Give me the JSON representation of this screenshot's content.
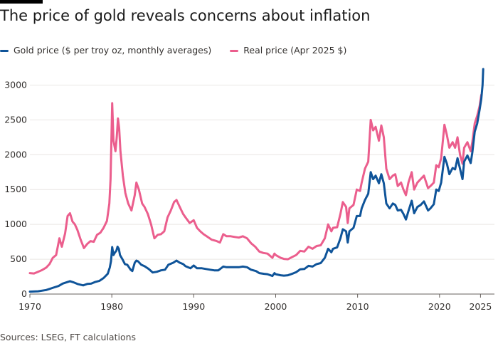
{
  "title": "The price of gold reveals concerns about inflation",
  "source": "Sources: LSEG, FT calculations",
  "colors": {
    "nominal": "#0f5499",
    "real": "#eb5e8d",
    "grid": "#e9e6e4",
    "axis": "#33302e"
  },
  "chart_data": {
    "type": "line",
    "title": "The price of gold reveals concerns about inflation",
    "xlabel": "",
    "ylabel": "",
    "xlim": [
      1970,
      2025.4
    ],
    "ylim": [
      0,
      3250
    ],
    "yticks": [
      0,
      500,
      1000,
      1500,
      2000,
      2500,
      3000
    ],
    "xticks": [
      1970,
      1980,
      1990,
      2000,
      2010,
      2020,
      2025
    ],
    "grid": true,
    "legend_position": "top-left",
    "series": [
      {
        "name": "Gold price ($ per troy oz, monthly averages)",
        "color": "#0f5499",
        "points": [
          [
            1970,
            35
          ],
          [
            1971,
            40
          ],
          [
            1972,
            58
          ],
          [
            1973,
            97
          ],
          [
            1973.5,
            115
          ],
          [
            1974,
            150
          ],
          [
            1974.5,
            170
          ],
          [
            1974.9,
            185
          ],
          [
            1975.3,
            170
          ],
          [
            1975.8,
            145
          ],
          [
            1976.5,
            125
          ],
          [
            1977,
            145
          ],
          [
            1977.5,
            150
          ],
          [
            1978,
            175
          ],
          [
            1978.5,
            190
          ],
          [
            1979,
            230
          ],
          [
            1979.5,
            290
          ],
          [
            1979.75,
            380
          ],
          [
            1979.9,
            470
          ],
          [
            1980.05,
            675
          ],
          [
            1980.2,
            560
          ],
          [
            1980.4,
            600
          ],
          [
            1980.55,
            620
          ],
          [
            1980.7,
            680
          ],
          [
            1980.85,
            650
          ],
          [
            1981,
            560
          ],
          [
            1981.3,
            500
          ],
          [
            1981.6,
            430
          ],
          [
            1981.9,
            420
          ],
          [
            1982.3,
            350
          ],
          [
            1982.5,
            330
          ],
          [
            1982.8,
            450
          ],
          [
            1983,
            480
          ],
          [
            1983.2,
            470
          ],
          [
            1983.6,
            420
          ],
          [
            1984,
            400
          ],
          [
            1984.5,
            360
          ],
          [
            1985,
            310
          ],
          [
            1985.5,
            320
          ],
          [
            1986,
            340
          ],
          [
            1986.5,
            350
          ],
          [
            1986.9,
            420
          ],
          [
            1987.5,
            450
          ],
          [
            1987.9,
            480
          ],
          [
            1988.3,
            450
          ],
          [
            1988.7,
            430
          ],
          [
            1989,
            400
          ],
          [
            1989.6,
            370
          ],
          [
            1990,
            410
          ],
          [
            1990.4,
            370
          ],
          [
            1991,
            370
          ],
          [
            1991.5,
            360
          ],
          [
            1992,
            350
          ],
          [
            1992.5,
            340
          ],
          [
            1993,
            340
          ],
          [
            1993.6,
            395
          ],
          [
            1994,
            385
          ],
          [
            1994.5,
            385
          ],
          [
            1995,
            385
          ],
          [
            1995.5,
            385
          ],
          [
            1996,
            395
          ],
          [
            1996.5,
            385
          ],
          [
            1997,
            350
          ],
          [
            1997.6,
            330
          ],
          [
            1998,
            300
          ],
          [
            1998.6,
            290
          ],
          [
            1999,
            285
          ],
          [
            1999.6,
            260
          ],
          [
            1999.85,
            300
          ],
          [
            2000,
            285
          ],
          [
            2000.6,
            270
          ],
          [
            2001,
            265
          ],
          [
            2001.5,
            270
          ],
          [
            2002,
            290
          ],
          [
            2002.5,
            315
          ],
          [
            2003,
            355
          ],
          [
            2003.5,
            360
          ],
          [
            2004,
            405
          ],
          [
            2004.5,
            395
          ],
          [
            2005,
            430
          ],
          [
            2005.5,
            445
          ],
          [
            2006,
            520
          ],
          [
            2006.4,
            650
          ],
          [
            2006.8,
            600
          ],
          [
            2007,
            650
          ],
          [
            2007.5,
            670
          ],
          [
            2007.9,
            800
          ],
          [
            2008.2,
            930
          ],
          [
            2008.6,
            900
          ],
          [
            2008.8,
            740
          ],
          [
            2009,
            900
          ],
          [
            2009.5,
            950
          ],
          [
            2009.9,
            1120
          ],
          [
            2010.3,
            1120
          ],
          [
            2010.5,
            1230
          ],
          [
            2010.9,
            1350
          ],
          [
            2011.3,
            1440
          ],
          [
            2011.6,
            1750
          ],
          [
            2011.9,
            1650
          ],
          [
            2012.2,
            1700
          ],
          [
            2012.6,
            1590
          ],
          [
            2012.9,
            1720
          ],
          [
            2013.2,
            1590
          ],
          [
            2013.5,
            1300
          ],
          [
            2013.9,
            1230
          ],
          [
            2014.3,
            1300
          ],
          [
            2014.6,
            1280
          ],
          [
            2014.9,
            1200
          ],
          [
            2015.3,
            1210
          ],
          [
            2015.6,
            1150
          ],
          [
            2015.9,
            1070
          ],
          [
            2016.2,
            1190
          ],
          [
            2016.6,
            1340
          ],
          [
            2016.9,
            1160
          ],
          [
            2017.3,
            1250
          ],
          [
            2017.7,
            1280
          ],
          [
            2018.1,
            1330
          ],
          [
            2018.6,
            1200
          ],
          [
            2018.9,
            1230
          ],
          [
            2019.3,
            1290
          ],
          [
            2019.6,
            1500
          ],
          [
            2019.9,
            1480
          ],
          [
            2020.2,
            1600
          ],
          [
            2020.6,
            1970
          ],
          [
            2020.9,
            1870
          ],
          [
            2021.2,
            1720
          ],
          [
            2021.6,
            1810
          ],
          [
            2021.9,
            1790
          ],
          [
            2022.2,
            1950
          ],
          [
            2022.5,
            1800
          ],
          [
            2022.8,
            1650
          ],
          [
            2023.0,
            1900
          ],
          [
            2023.4,
            1990
          ],
          [
            2023.8,
            1880
          ],
          [
            2024,
            2030
          ],
          [
            2024.3,
            2330
          ],
          [
            2024.6,
            2450
          ],
          [
            2024.9,
            2650
          ],
          [
            2025.1,
            2800
          ],
          [
            2025.25,
            3000
          ],
          [
            2025.33,
            3230
          ]
        ]
      },
      {
        "name": "Real price (Apr 2025 $)",
        "color": "#eb5e8d",
        "points": [
          [
            1970,
            300
          ],
          [
            1970.5,
            295
          ],
          [
            1971,
            320
          ],
          [
            1971.5,
            345
          ],
          [
            1972,
            380
          ],
          [
            1972.4,
            430
          ],
          [
            1972.8,
            520
          ],
          [
            1973.2,
            560
          ],
          [
            1973.6,
            800
          ],
          [
            1973.9,
            680
          ],
          [
            1974.3,
            870
          ],
          [
            1974.6,
            1120
          ],
          [
            1974.9,
            1160
          ],
          [
            1975.2,
            1040
          ],
          [
            1975.5,
            1000
          ],
          [
            1975.8,
            920
          ],
          [
            1976.2,
            780
          ],
          [
            1976.6,
            660
          ],
          [
            1977,
            720
          ],
          [
            1977.4,
            760
          ],
          [
            1977.8,
            750
          ],
          [
            1978.2,
            850
          ],
          [
            1978.6,
            880
          ],
          [
            1979,
            950
          ],
          [
            1979.4,
            1050
          ],
          [
            1979.7,
            1300
          ],
          [
            1979.85,
            1650
          ],
          [
            1980.05,
            2740
          ],
          [
            1980.2,
            2200
          ],
          [
            1980.45,
            2050
          ],
          [
            1980.6,
            2250
          ],
          [
            1980.75,
            2520
          ],
          [
            1980.9,
            2380
          ],
          [
            1981.05,
            2050
          ],
          [
            1981.35,
            1700
          ],
          [
            1981.65,
            1450
          ],
          [
            1982,
            1300
          ],
          [
            1982.4,
            1200
          ],
          [
            1982.8,
            1420
          ],
          [
            1983,
            1600
          ],
          [
            1983.3,
            1500
          ],
          [
            1983.7,
            1300
          ],
          [
            1984,
            1250
          ],
          [
            1984.4,
            1150
          ],
          [
            1984.8,
            1000
          ],
          [
            1985.2,
            800
          ],
          [
            1985.6,
            850
          ],
          [
            1986,
            860
          ],
          [
            1986.4,
            900
          ],
          [
            1986.8,
            1100
          ],
          [
            1987.2,
            1200
          ],
          [
            1987.6,
            1320
          ],
          [
            1987.9,
            1350
          ],
          [
            1988.3,
            1250
          ],
          [
            1988.7,
            1150
          ],
          [
            1989,
            1100
          ],
          [
            1989.5,
            1020
          ],
          [
            1990,
            1060
          ],
          [
            1990.4,
            950
          ],
          [
            1990.8,
            900
          ],
          [
            1991.2,
            860
          ],
          [
            1991.7,
            820
          ],
          [
            1992.2,
            780
          ],
          [
            1992.8,
            760
          ],
          [
            1993.2,
            740
          ],
          [
            1993.6,
            860
          ],
          [
            1994,
            830
          ],
          [
            1994.5,
            830
          ],
          [
            1995,
            820
          ],
          [
            1995.5,
            810
          ],
          [
            1996,
            830
          ],
          [
            1996.5,
            800
          ],
          [
            1997,
            730
          ],
          [
            1997.5,
            680
          ],
          [
            1998,
            610
          ],
          [
            1998.5,
            590
          ],
          [
            1999,
            580
          ],
          [
            1999.6,
            520
          ],
          [
            1999.85,
            580
          ],
          [
            2000,
            560
          ],
          [
            2000.6,
            520
          ],
          [
            2001,
            505
          ],
          [
            2001.5,
            500
          ],
          [
            2002,
            530
          ],
          [
            2002.5,
            560
          ],
          [
            2003,
            620
          ],
          [
            2003.5,
            610
          ],
          [
            2004,
            680
          ],
          [
            2004.5,
            650
          ],
          [
            2005,
            690
          ],
          [
            2005.5,
            700
          ],
          [
            2006,
            800
          ],
          [
            2006.4,
            1000
          ],
          [
            2006.8,
            900
          ],
          [
            2007,
            950
          ],
          [
            2007.5,
            960
          ],
          [
            2007.9,
            1150
          ],
          [
            2008.2,
            1320
          ],
          [
            2008.6,
            1250
          ],
          [
            2008.8,
            1020
          ],
          [
            2009,
            1230
          ],
          [
            2009.5,
            1280
          ],
          [
            2009.9,
            1500
          ],
          [
            2010.3,
            1480
          ],
          [
            2010.5,
            1600
          ],
          [
            2010.9,
            1800
          ],
          [
            2011.3,
            1900
          ],
          [
            2011.6,
            2500
          ],
          [
            2011.9,
            2350
          ],
          [
            2012.2,
            2400
          ],
          [
            2012.6,
            2200
          ],
          [
            2012.9,
            2420
          ],
          [
            2013.2,
            2250
          ],
          [
            2013.5,
            1800
          ],
          [
            2013.9,
            1650
          ],
          [
            2014.3,
            1700
          ],
          [
            2014.6,
            1720
          ],
          [
            2014.9,
            1550
          ],
          [
            2015.3,
            1600
          ],
          [
            2015.6,
            1500
          ],
          [
            2015.9,
            1420
          ],
          [
            2016.2,
            1600
          ],
          [
            2016.6,
            1750
          ],
          [
            2016.9,
            1500
          ],
          [
            2017.3,
            1600
          ],
          [
            2017.7,
            1650
          ],
          [
            2018.1,
            1700
          ],
          [
            2018.6,
            1520
          ],
          [
            2018.9,
            1550
          ],
          [
            2019.3,
            1600
          ],
          [
            2019.6,
            1850
          ],
          [
            2019.9,
            1820
          ],
          [
            2020.2,
            1950
          ],
          [
            2020.6,
            2430
          ],
          [
            2020.9,
            2280
          ],
          [
            2021.2,
            2100
          ],
          [
            2021.6,
            2180
          ],
          [
            2021.9,
            2100
          ],
          [
            2022.2,
            2250
          ],
          [
            2022.5,
            2000
          ],
          [
            2022.8,
            1870
          ],
          [
            2023.0,
            2100
          ],
          [
            2023.4,
            2180
          ],
          [
            2023.8,
            2050
          ],
          [
            2024,
            2180
          ],
          [
            2024.3,
            2450
          ],
          [
            2024.6,
            2560
          ],
          [
            2024.9,
            2700
          ],
          [
            2025.1,
            2860
          ]
        ]
      }
    ]
  }
}
